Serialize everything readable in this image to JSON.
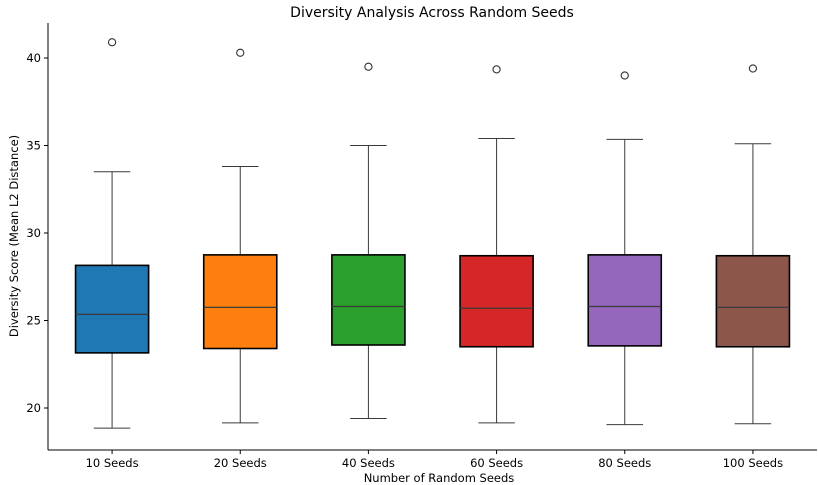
{
  "chart_data": {
    "type": "box",
    "title": "Diversity Analysis Across Random Seeds",
    "xlabel": "Number of Random Seeds",
    "ylabel": "Diversity Score (Mean L2 Distance)",
    "ylim": [
      17.6,
      42.0
    ],
    "yticks": [
      20,
      25,
      30,
      35,
      40
    ],
    "grid": false,
    "categories": [
      "10 Seeds",
      "20 Seeds",
      "40 Seeds",
      "60 Seeds",
      "80 Seeds",
      "100 Seeds"
    ],
    "colors": [
      "#1f77b4",
      "#ff7f0e",
      "#2ca02c",
      "#d62728",
      "#9467bd",
      "#8c564b"
    ],
    "boxes": [
      {
        "category": "10 Seeds",
        "whisker_low": 18.85,
        "q1": 23.15,
        "median": 25.35,
        "q3": 28.15,
        "whisker_high": 33.5,
        "outliers": [
          40.9
        ]
      },
      {
        "category": "20 Seeds",
        "whisker_low": 19.15,
        "q1": 23.4,
        "median": 25.75,
        "q3": 28.75,
        "whisker_high": 33.8,
        "outliers": [
          40.3
        ]
      },
      {
        "category": "40 Seeds",
        "whisker_low": 19.4,
        "q1": 23.6,
        "median": 25.8,
        "q3": 28.75,
        "whisker_high": 35.0,
        "outliers": [
          39.5
        ]
      },
      {
        "category": "60 Seeds",
        "whisker_low": 19.15,
        "q1": 23.5,
        "median": 25.7,
        "q3": 28.7,
        "whisker_high": 35.4,
        "outliers": [
          39.35
        ]
      },
      {
        "category": "80 Seeds",
        "whisker_low": 19.05,
        "q1": 23.55,
        "median": 25.8,
        "q3": 28.75,
        "whisker_high": 35.35,
        "outliers": [
          39.0
        ]
      },
      {
        "category": "100 Seeds",
        "whisker_low": 19.1,
        "q1": 23.5,
        "median": 25.75,
        "q3": 28.7,
        "whisker_high": 35.1,
        "outliers": [
          39.4
        ]
      }
    ]
  }
}
